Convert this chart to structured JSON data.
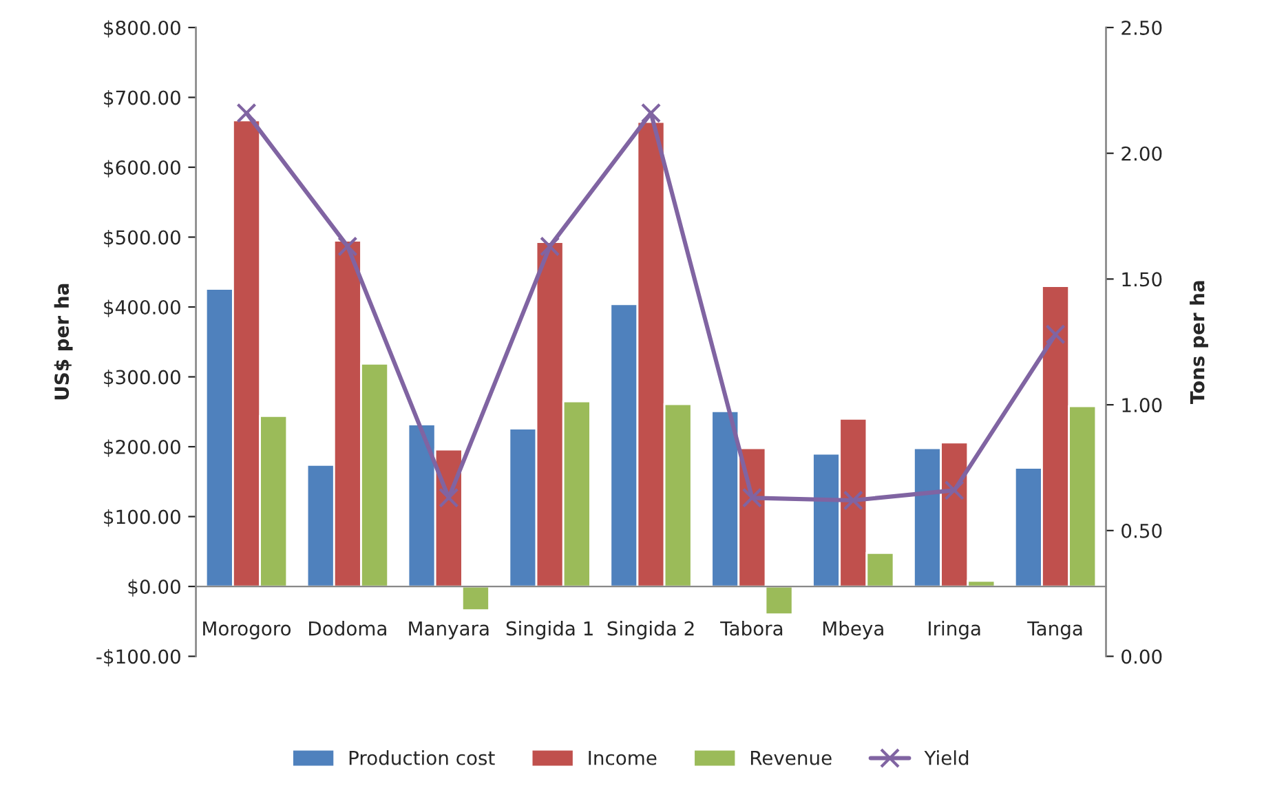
{
  "chart_data": {
    "type": "bar",
    "categories": [
      "Morogoro",
      "Dodoma",
      "Manyara",
      "Singida 1",
      "Singida 2",
      "Tabora",
      "Mbeya",
      "Iringa",
      "Tanga"
    ],
    "series": [
      {
        "name": "Production cost",
        "color": "#4f81bd",
        "values": [
          426,
          174,
          232,
          226,
          404,
          251,
          190,
          198,
          170
        ]
      },
      {
        "name": "Income",
        "color": "#c0504d",
        "values": [
          667,
          495,
          196,
          493,
          665,
          198,
          240,
          206,
          430
        ]
      },
      {
        "name": "Revenue",
        "color": "#9bbb59",
        "values": [
          244,
          319,
          -34,
          265,
          261,
          -40,
          48,
          8,
          258
        ]
      },
      {
        "name": "Yield",
        "color": "#8064a2",
        "type": "line",
        "axis": "y2",
        "marker": "cross",
        "values": [
          2.16,
          1.63,
          0.63,
          1.63,
          2.16,
          0.63,
          0.62,
          0.66,
          1.28
        ]
      }
    ],
    "ylabel": "US$ per ha",
    "y2label": "Tons per ha",
    "ylim": [
      -100,
      800
    ],
    "yticks": [
      {
        "value": -100,
        "label": "-$100.00"
      },
      {
        "value": 0,
        "label": "$0.00"
      },
      {
        "value": 100,
        "label": "$100.00"
      },
      {
        "value": 200,
        "label": "$200.00"
      },
      {
        "value": 300,
        "label": "$300.00"
      },
      {
        "value": 400,
        "label": "$400.00"
      },
      {
        "value": 500,
        "label": "$500.00"
      },
      {
        "value": 600,
        "label": "$600.00"
      },
      {
        "value": 700,
        "label": "$700.00"
      },
      {
        "value": 800,
        "label": "$800.00"
      }
    ],
    "y2lim": [
      0,
      2.5
    ],
    "y2ticks": [
      {
        "value": 0,
        "label": "0.00"
      },
      {
        "value": 0.5,
        "label": "0.50"
      },
      {
        "value": 1,
        "label": "1.00"
      },
      {
        "value": 1.5,
        "label": "1.50"
      },
      {
        "value": 2,
        "label": "2.00"
      },
      {
        "value": 2.5,
        "label": "2.50"
      }
    ],
    "grid": false,
    "legend": "bottom"
  }
}
